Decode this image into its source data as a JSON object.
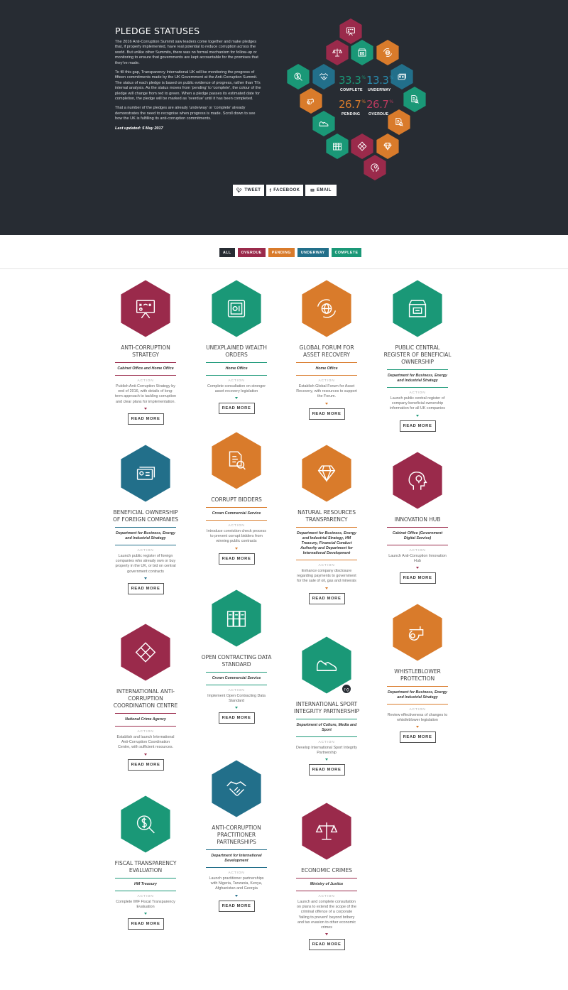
{
  "colors": {
    "overdue": "#9a2a4b",
    "pending": "#d97b2b",
    "underway": "#226f8a",
    "complete": "#1a9877",
    "header_bg": "#272c33"
  },
  "intro": {
    "title": "PLEDGE STATUSES",
    "p1": "The 2016 Anti-Corruption Summit saw leaders come together and make pledges that, if properly implemented, have real potential to reduce corruption across the world. But unlike other Summits, there was no formal mechanism for follow-up or monitoring to ensure that governments are kept accountable for the promises that they've made.",
    "p2": "To fill this gap, Transparency International UK will be monitoring the progress of fifteen commitments made by the UK Government at the Anti-Corruption Summit. The status of each pledge is based on public evidence of progress, rather than TI's internal analysis. As the status moves from 'pending' to 'complete', the colour of the pledge will change from red to green. When a pledge passes its estimated date for completion, the pledge will be marked as 'overdue' until it has been completed.",
    "p3": "That a number of the pledges are already 'underway' or 'complete' already demonstrates the need to recognise when progress is made. Scroll down to see how the UK is fulfilling its anti-corruption commitments.",
    "updated": "Last updated: 5 May 2017"
  },
  "stats": {
    "complete": {
      "value": "33.3",
      "unit": "%",
      "label": "COMPLETE"
    },
    "underway": {
      "value": "13.3",
      "unit": "%",
      "label": "UNDERWAY"
    },
    "pending": {
      "value": "26.7",
      "unit": "%",
      "label": "PENDING"
    },
    "overdue": {
      "value": "26.7",
      "unit": "%",
      "label": "OVERDUE"
    }
  },
  "share": {
    "tweet": "TWEET",
    "facebook": "FACEBOOK",
    "email": "EMAIL"
  },
  "filters": {
    "all": "ALL",
    "overdue": "OVERDUE",
    "pending": "PENDING",
    "underway": "UNDERWAY",
    "complete": "COMPLETE"
  },
  "cards": [
    {
      "title": "ANTI-CORRUPTION STRATEGY",
      "dept": "Cabinet Office and Home Office",
      "action_label": "ACTION",
      "action": "Publish Anti-Corruption Strategy by end of 2016, with details of long-term approach to tackling corruption and clear plans for implementation.",
      "status": "overdue",
      "icon": "strategy-board-icon",
      "button": "READ MORE"
    },
    {
      "title": "UNEXPLAINED WEALTH ORDERS",
      "dept": "Home Office",
      "action_label": "ACTION",
      "action": "Complete consultation on stronger asset recovery legislation",
      "status": "complete",
      "icon": "safe-icon",
      "button": "READ MORE"
    },
    {
      "title": "GLOBAL FORUM FOR ASSET RECOVERY",
      "dept": "Home Office",
      "action_label": "ACTION",
      "action": "Establish Global Forum for Asset Recovery, with resources to support the Forum.",
      "status": "pending",
      "icon": "globe-arrows-icon",
      "button": "READ MORE"
    },
    {
      "title": "PUBLIC CENTRAL REGISTER OF BENEFICIAL OWNERSHIP",
      "dept": "Department for Business, Energy and Industrial Strategy",
      "action_label": "ACTION",
      "action": "Launch public central register of company beneficial ownership information for all UK companies",
      "status": "complete",
      "icon": "register-box-icon",
      "button": "READ MORE"
    },
    {
      "title": "BENEFICIAL OWNERSHIP OF FOREIGN COMPANIES",
      "dept": "Department for Business, Energy and Industrial Strategy",
      "action_label": "ACTION",
      "action": "Launch public register of foreign companies who already own or buy property in the UK, or bid on central government contracts",
      "status": "underway",
      "icon": "id-cards-icon",
      "button": "READ MORE"
    },
    {
      "title": "CORRUPT BIDDERS",
      "dept": "Crown Commercial Service",
      "action_label": "ACTION",
      "action": "Introduce conviction check process to prevent corrupt bidders from winning public contracts",
      "status": "pending",
      "icon": "document-search-icon",
      "button": "READ MORE"
    },
    {
      "title": "NATURAL RESOURCES TRANSPARENCY",
      "dept": "Department for Business, Energy and Industrial Strategy, HM Treasury, Financial Conduct Authority and Department for International Development",
      "action_label": "ACTION",
      "action": "Enhance company disclosure regarding payments to government for the sale of oil, gas and minerals",
      "status": "pending",
      "icon": "diamond-icon",
      "button": "READ MORE"
    },
    {
      "title": "INNOVATION HUB",
      "dept": "Cabinet Office (Government Digital Service)",
      "action_label": "ACTION",
      "action": "Launch Anti-Corruption Innovation Hub",
      "status": "overdue",
      "icon": "head-lightbulb-icon",
      "button": "READ MORE"
    },
    {
      "title": "OPEN CONTRACTING DATA STANDARD",
      "dept": "Crown Commercial Service",
      "action_label": "ACTION",
      "action": "Implement Open Contracting Data Standard",
      "status": "complete",
      "icon": "file-cabinets-icon",
      "button": "READ MORE"
    },
    {
      "title": "INTERNATIONAL ANTI-CORRUPTION COORDINATION CENTRE",
      "dept": "National Crime Agency",
      "action_label": "ACTION",
      "action": "Establish and launch International Anti-Corruption Coordination Centre, with sufficient resources.",
      "status": "overdue",
      "icon": "puzzle-icon",
      "button": "READ MORE"
    },
    {
      "title": "INTERNATIONAL SPORT INTEGRITY PARTNERSHIP",
      "dept": "Department of Culture, Media and Sport",
      "action_label": "ACTION",
      "action": "Develop International Sport Integrity Partnership",
      "status": "complete",
      "icon": "sneaker-icon",
      "button": "READ MORE"
    },
    {
      "title": "WHISTLEBLOWER PROTECTION",
      "dept": "Department for Business, Energy and Industrial Strategy",
      "action_label": "ACTION",
      "action": "Review effectiveness of changes to whistleblower legislation",
      "status": "pending",
      "icon": "whistle-icon",
      "button": "READ MORE"
    },
    {
      "title": "ANTI-CORRUPTION PRACTITIONER PARTNERSHIPS",
      "dept": "Department for International Development",
      "action_label": "ACTION",
      "action": "Launch practitioner partnerships with Nigeria, Tanzania, Kenya, Afghanistan and Georgia",
      "status": "underway",
      "icon": "handshake-icon",
      "button": "READ MORE"
    },
    {
      "title": "FISCAL TRANSPARENCY EVALUATION",
      "dept": "HM Treasury",
      "action_label": "ACTION",
      "action": "Complete IMF Fiscal Transparency Evaluation",
      "status": "complete",
      "icon": "dollar-magnifier-icon",
      "button": "READ MORE"
    },
    {
      "title": "ECONOMIC CRIMES",
      "dept": "Ministry of Justice",
      "action_label": "ACTION",
      "action": "Launch and complete consultation on plans to extend the scope of the criminal offence of a corporate 'failing to prevent' beyond bribery and tax evasion to other economic crimes",
      "status": "overdue",
      "icon": "scales-icon",
      "button": "READ MORE"
    }
  ]
}
